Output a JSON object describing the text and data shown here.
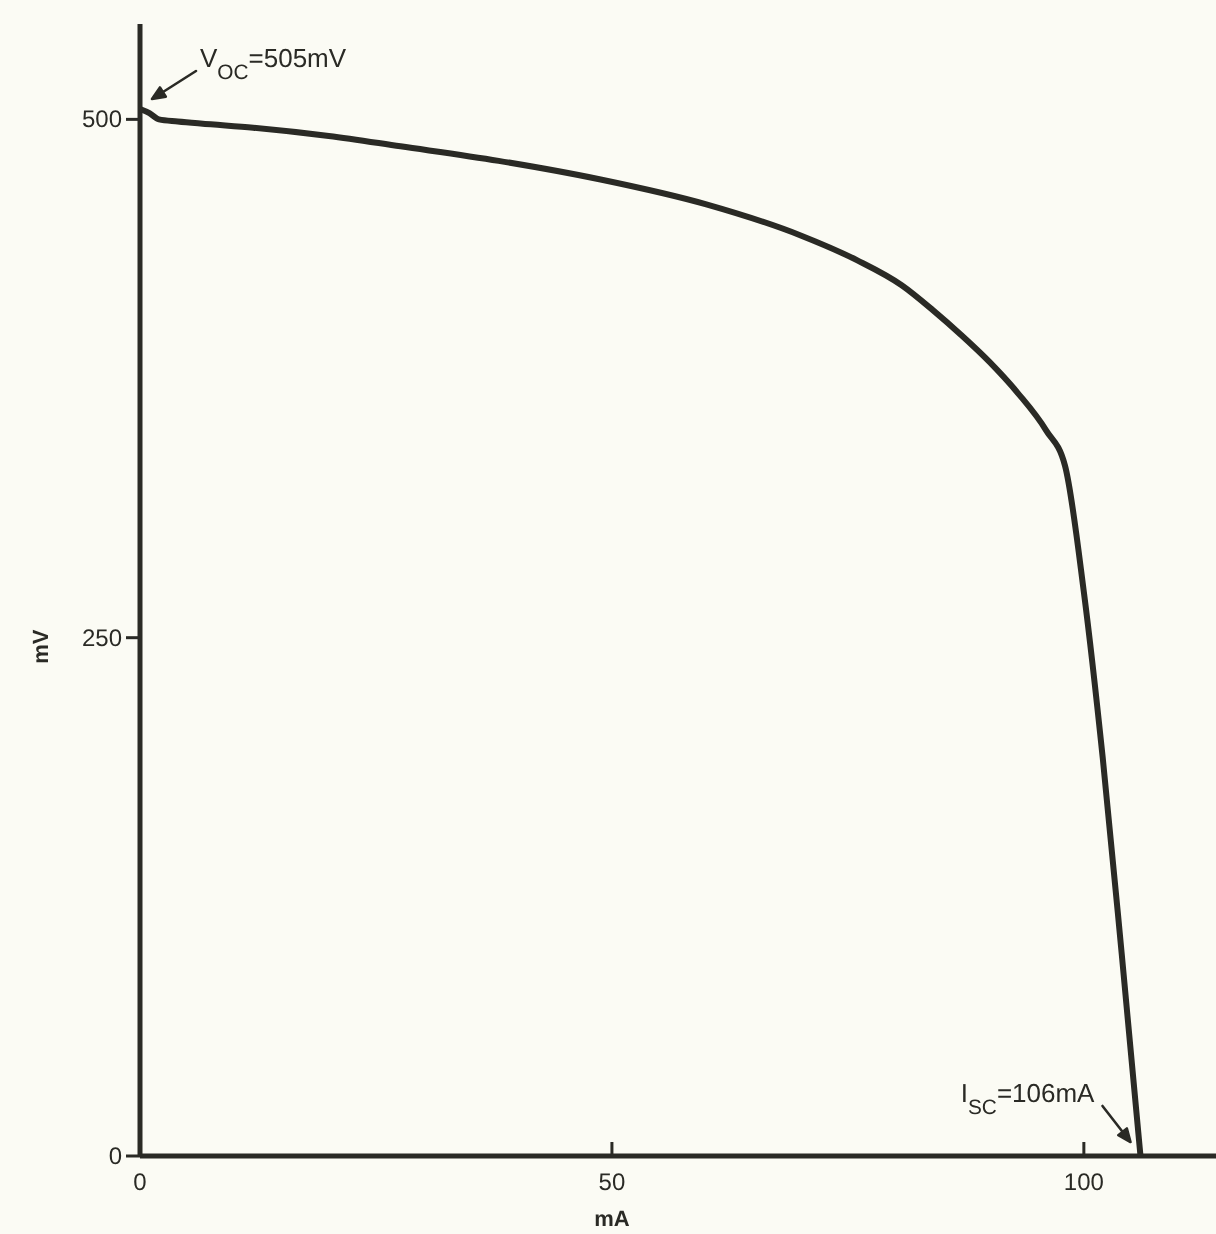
{
  "chart_data": {
    "type": "line",
    "xlabel": "mA",
    "ylabel": "mV",
    "x": [
      0,
      1,
      2,
      4,
      6.4,
      12,
      20,
      27.6,
      38,
      48.8,
      60,
      70,
      76,
      80.7,
      84,
      87,
      90,
      93,
      96,
      98,
      100,
      102,
      104,
      106
    ],
    "series": [
      {
        "color": "#2a2a25",
        "values": [
          505,
          503,
          500,
          499,
          498,
          496,
          492,
          487,
          480,
          471,
          459,
          444,
          432,
          420,
          408,
          396,
          383,
          368,
          350,
          333,
          272,
          192,
          98,
          0
        ]
      }
    ],
    "xlim": [
      0,
      114
    ],
    "ylim": [
      0,
      546
    ],
    "xticks": [
      0,
      50,
      100
    ],
    "yticks": [
      0,
      250,
      500
    ],
    "grid": false,
    "marker": "none",
    "line_style": "solid",
    "annotations": [
      {
        "text": "V$_{OC}$=505mV",
        "x": 0,
        "y": 505
      },
      {
        "text": "I$_{SC}$=106mA",
        "x": 106,
        "y": 0
      }
    ]
  }
}
